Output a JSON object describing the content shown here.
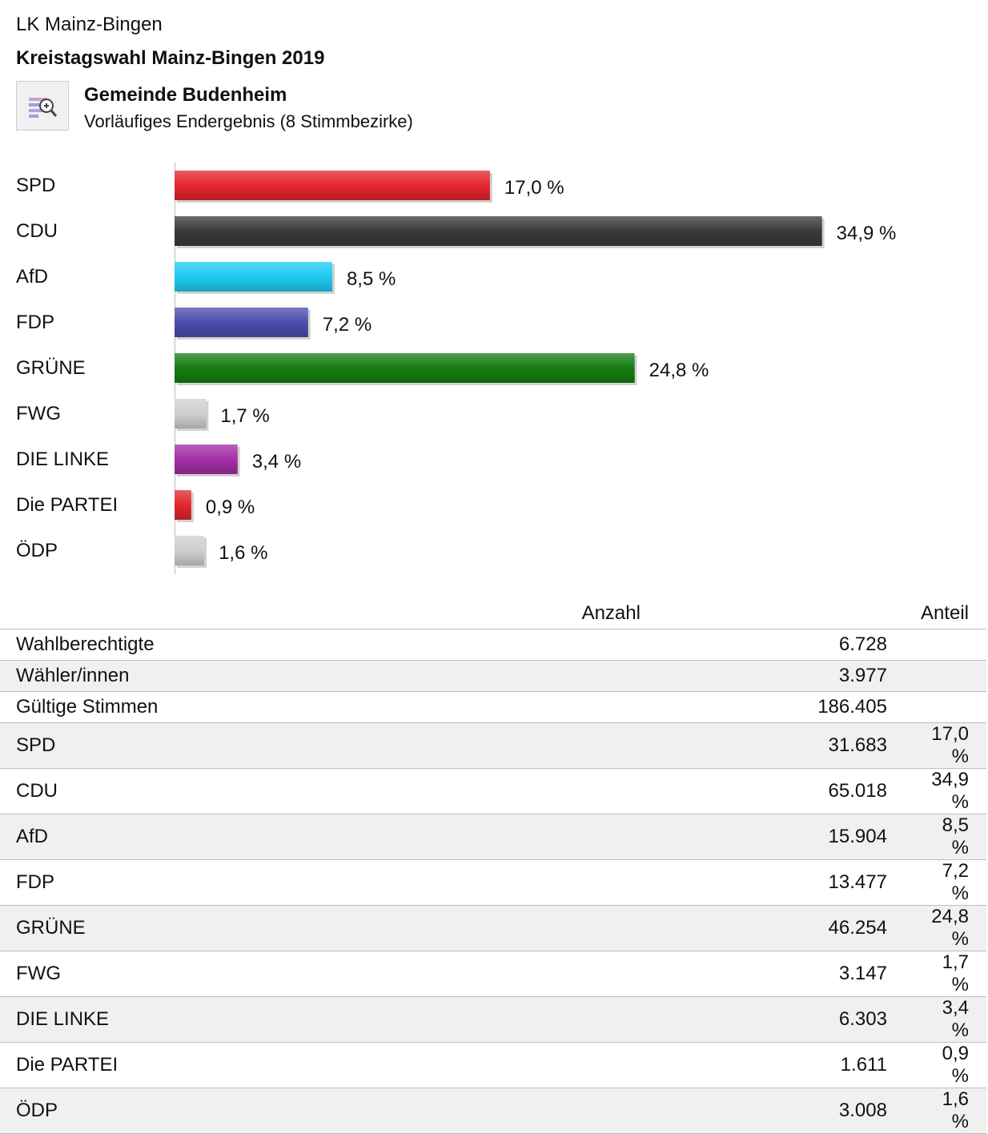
{
  "header": {
    "region": "LK Mainz-Bingen",
    "election": "Kreistagswahl Mainz-Bingen 2019",
    "municipality": "Gemeinde Budenheim",
    "status": "Vorläufiges Endergebnis (8 Stimmbezirke)",
    "zoom_icon": "zoom-chart-icon"
  },
  "chart_data": {
    "type": "bar",
    "orientation": "horizontal",
    "categories": [
      "SPD",
      "CDU",
      "AfD",
      "FDP",
      "GRÜNE",
      "FWG",
      "DIE LINKE",
      "Die PARTEI",
      "ÖDP"
    ],
    "values": [
      17.0,
      34.9,
      8.5,
      7.2,
      24.8,
      1.7,
      3.4,
      0.9,
      1.6
    ],
    "value_labels": [
      "17,0 %",
      "34,9 %",
      "8,5 %",
      "7,2 %",
      "24,8 %",
      "1,7 %",
      "3,4 %",
      "0,9 %",
      "1,6 %"
    ],
    "colors": [
      "#e3262c",
      "#3a3a3a",
      "#1ecbf2",
      "#4b4ead",
      "#157d11",
      "#cfcfcf",
      "#a42ea6",
      "#e3262c",
      "#cfcfcf"
    ],
    "xlim": [
      0,
      35
    ],
    "grid": false,
    "legend": "none"
  },
  "table": {
    "headers": [
      "",
      "Anzahl",
      "Anteil"
    ],
    "rows": [
      [
        "Wahlberechtigte",
        "6.728",
        ""
      ],
      [
        "Wähler/innen",
        "3.977",
        ""
      ],
      [
        "Gültige Stimmen",
        "186.405",
        ""
      ],
      [
        "SPD",
        "31.683",
        "17,0 %"
      ],
      [
        "CDU",
        "65.018",
        "34,9 %"
      ],
      [
        "AfD",
        "15.904",
        "8,5 %"
      ],
      [
        "FDP",
        "13.477",
        "7,2 %"
      ],
      [
        "GRÜNE",
        "46.254",
        "24,8 %"
      ],
      [
        "FWG",
        "3.147",
        "1,7 %"
      ],
      [
        "DIE LINKE",
        "6.303",
        "3,4 %"
      ],
      [
        "Die PARTEI",
        "1.611",
        "0,9 %"
      ],
      [
        "ÖDP",
        "3.008",
        "1,6 %"
      ]
    ]
  }
}
